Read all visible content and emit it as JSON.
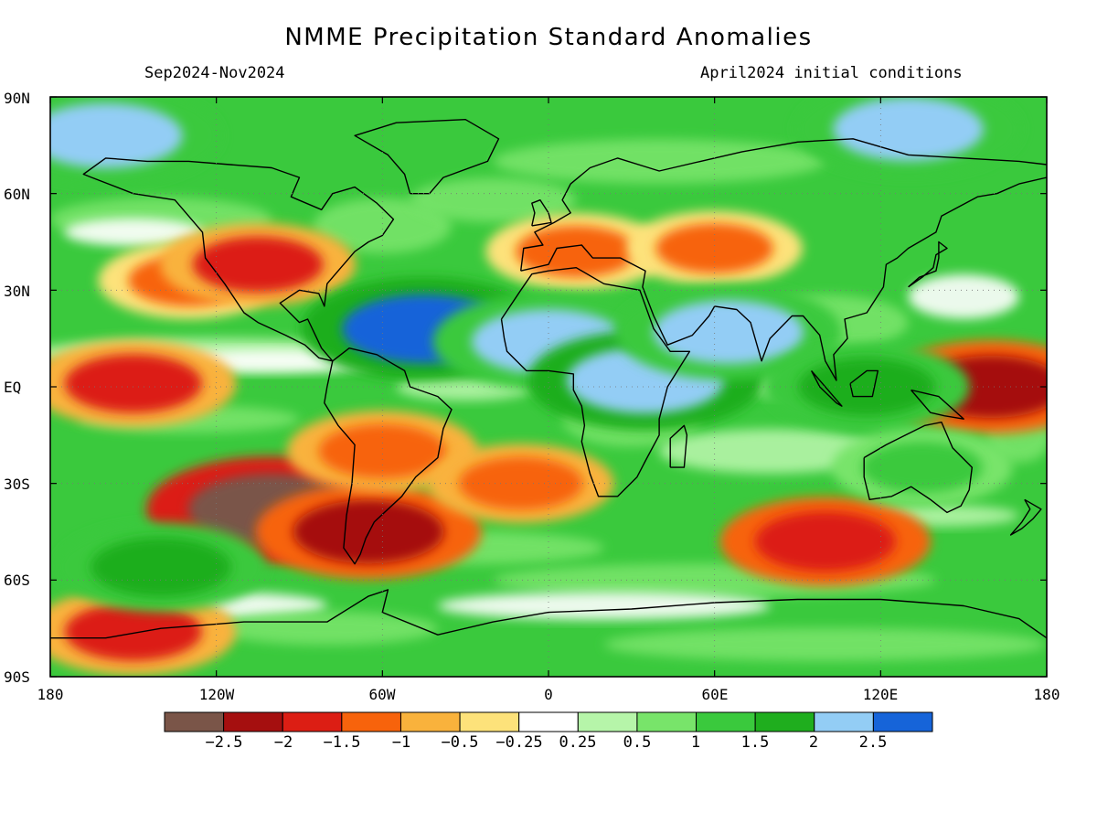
{
  "header": {
    "title": "NMME Precipitation Standard Anomalies",
    "period": "Sep2024-Nov2024",
    "init": "April2024 initial conditions"
  },
  "axes": {
    "lat_labels": [
      "90N",
      "60N",
      "30N",
      "EQ",
      "30S",
      "60S",
      "90S"
    ],
    "lat_values": [
      90,
      60,
      30,
      0,
      -30,
      -60,
      -90
    ],
    "lon_labels": [
      "180",
      "120W",
      "60W",
      "0",
      "60E",
      "120E",
      "180"
    ],
    "lon_values": [
      -180,
      -120,
      -60,
      0,
      60,
      120,
      180
    ]
  },
  "legend": {
    "colors": [
      "#7a5548",
      "#a50f0f",
      "#dc1e14",
      "#f7630c",
      "#f9b23c",
      "#fde27a",
      "#ffffff",
      "#b6f5a9",
      "#78e46a",
      "#3ac93d",
      "#1fae1e",
      "#93cdf5",
      "#1664d9"
    ],
    "labels": [
      "−2.5",
      "−2",
      "−1.5",
      "−1",
      "−0.5",
      "−0.25",
      "0.25",
      "0.5",
      "1",
      "1.5",
      "2",
      "2.5"
    ]
  },
  "map_data": {
    "type": "heatmap",
    "variable": "precipitation standard anomaly",
    "xlim": [
      -180,
      180
    ],
    "ylim": [
      -90,
      90
    ],
    "features": [
      {
        "region": "Equatorial East Pacific",
        "lon": -150,
        "lat": 1,
        "value": -1.8
      },
      {
        "region": "Southeast Pacific",
        "lon": -100,
        "lat": -38,
        "value": -2.7
      },
      {
        "region": "Subtropical North Pacific",
        "lon": -130,
        "lat": 33,
        "value": -1.3
      },
      {
        "region": "Southwestern United States",
        "lon": -105,
        "lat": 38,
        "value": -1.6
      },
      {
        "region": "Patagonia",
        "lon": -65,
        "lat": -45,
        "value": -2.2
      },
      {
        "region": "South America interior",
        "lon": -60,
        "lat": -20,
        "value": -1.5
      },
      {
        "region": "South Atlantic",
        "lon": -10,
        "lat": -30,
        "value": -1.4
      },
      {
        "region": "Mediterranean / Europe",
        "lon": 10,
        "lat": 42,
        "value": -1.3
      },
      {
        "region": "Central Asia",
        "lon": 60,
        "lat": 43,
        "value": -1.2
      },
      {
        "region": "Southern Ocean south of Australia",
        "lon": 100,
        "lat": -48,
        "value": -1.9
      },
      {
        "region": "West Pacific warm pool",
        "lon": 160,
        "lat": 0,
        "value": -2.1
      },
      {
        "region": "Antarctic coast",
        "lon": -150,
        "lat": -76,
        "value": -1.8
      },
      {
        "region": "Tropical North Atlantic",
        "lon": -45,
        "lat": 18,
        "value": 2.6
      },
      {
        "region": "Sahel",
        "lon": 0,
        "lat": 14,
        "value": 2.3
      },
      {
        "region": "East Africa",
        "lon": 35,
        "lat": 2,
        "value": 2.4
      },
      {
        "region": "Arabian Sea / India",
        "lon": 65,
        "lat": 17,
        "value": 2.2
      },
      {
        "region": "Maritime Continent",
        "lon": 115,
        "lat": 0,
        "value": 1.8
      },
      {
        "region": "Arctic (north of Siberia)",
        "lon": 130,
        "lat": 80,
        "value": 2.2
      },
      {
        "region": "Arctic (north of Alaska)",
        "lon": -160,
        "lat": 78,
        "value": 2.3
      },
      {
        "region": "Australia",
        "lon": 135,
        "lat": -25,
        "value": 1.3
      },
      {
        "region": "Southern Ocean South Pacific",
        "lon": -140,
        "lat": -56,
        "value": 1.9
      }
    ]
  }
}
